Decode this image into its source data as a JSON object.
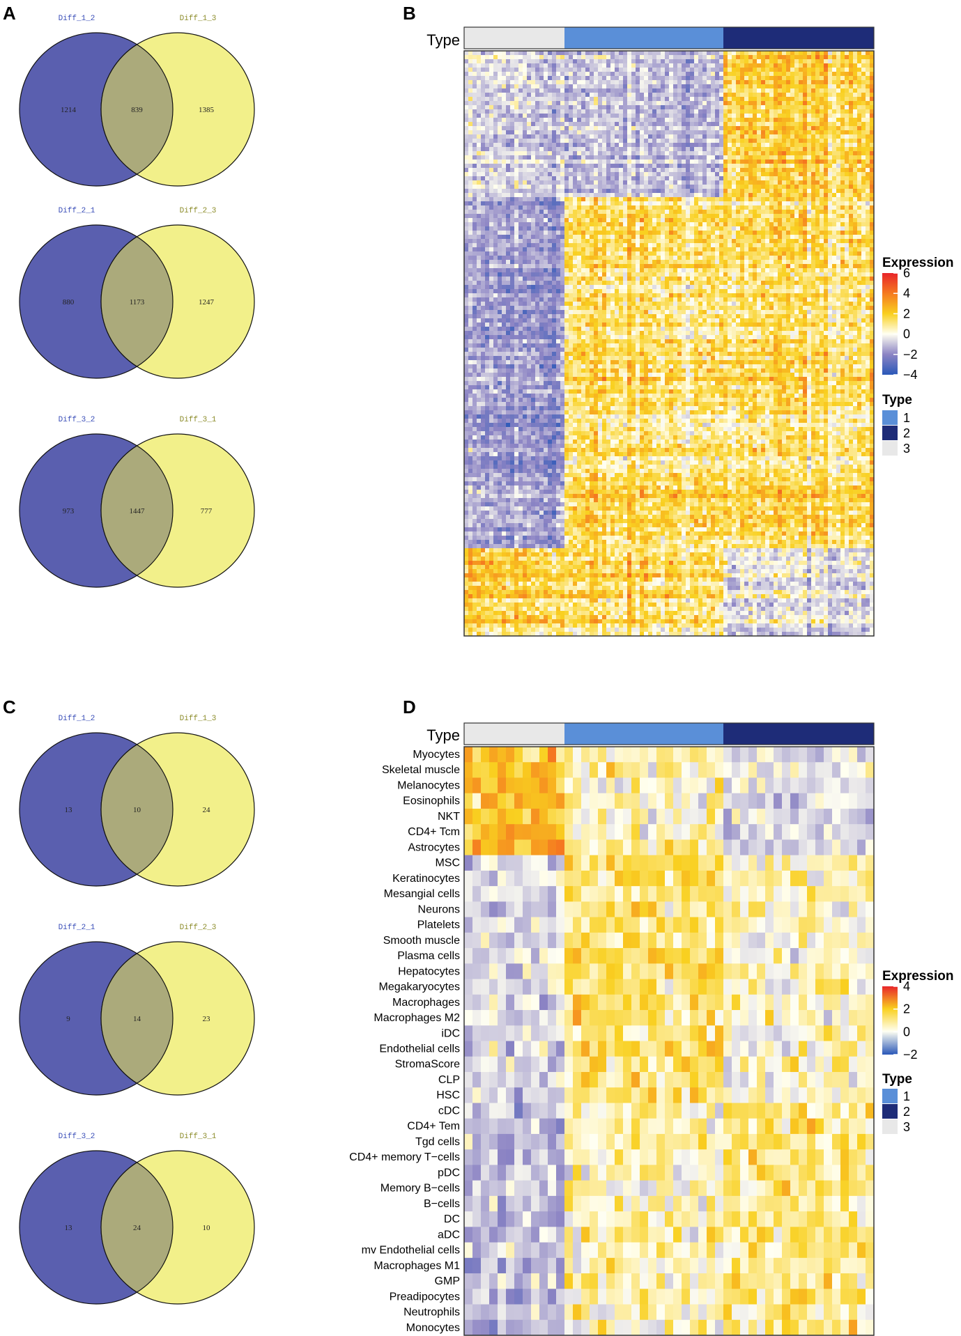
{
  "panels": {
    "A": "A",
    "B": "B",
    "C": "C",
    "D": "D"
  },
  "colors": {
    "venn_left": "#5A5FAF",
    "venn_right": "#F2F08A",
    "venn_overlap": "#ABAA7B",
    "label_left": "#3A4EB8",
    "label_right": "#8C8C2A",
    "type1": "#5A8FD8",
    "type2": "#1E2C78",
    "type3": "#E8E8E8"
  },
  "chart_data": [
    {
      "type": "venn",
      "panel": "A",
      "diagrams": [
        {
          "left_label": "Diff_1_2",
          "right_label": "Diff_1_3",
          "left_only": 1214,
          "overlap": 839,
          "right_only": 1385
        },
        {
          "left_label": "Diff_2_1",
          "right_label": "Diff_2_3",
          "left_only": 880,
          "overlap": 1173,
          "right_only": 1247
        },
        {
          "left_label": "Diff_3_2",
          "right_label": "Diff_3_1",
          "left_only": 973,
          "overlap": 1447,
          "right_only": 777
        }
      ]
    },
    {
      "type": "heatmap",
      "panel": "B",
      "annotation_label": "Type",
      "type_groups": [
        {
          "type": "3",
          "columns": 24
        },
        {
          "type": "1",
          "columns": 38
        },
        {
          "type": "2",
          "columns": 36
        }
      ],
      "legend": {
        "title": "Expression",
        "ticks": [
          "6",
          "4",
          "2",
          "0",
          "−2",
          "−4"
        ],
        "range": [
          -4,
          6
        ]
      },
      "type_legend": {
        "title": "Type",
        "items": [
          "1",
          "2",
          "3"
        ]
      }
    },
    {
      "type": "venn",
      "panel": "C",
      "diagrams": [
        {
          "left_label": "Diff_1_2",
          "right_label": "Diff_1_3",
          "left_only": 13,
          "overlap": 10,
          "right_only": 24
        },
        {
          "left_label": "Diff_2_1",
          "right_label": "Diff_2_3",
          "left_only": 9,
          "overlap": 14,
          "right_only": 23
        },
        {
          "left_label": "Diff_3_2",
          "right_label": "Diff_3_1",
          "left_only": 13,
          "overlap": 24,
          "right_only": 10
        }
      ]
    },
    {
      "type": "heatmap",
      "panel": "D",
      "annotation_label": "Type",
      "type_groups": [
        {
          "type": "3",
          "columns": 12
        },
        {
          "type": "1",
          "columns": 19
        },
        {
          "type": "2",
          "columns": 18
        }
      ],
      "rows": [
        "Myocytes",
        "Skeletal muscle",
        "Melanocytes",
        "Eosinophils",
        "NKT",
        "CD4+ Tcm",
        "Astrocytes",
        "MSC",
        "Keratinocytes",
        "Mesangial cells",
        "Neurons",
        "Platelets",
        "Smooth muscle",
        "Plasma cells",
        "Hepatocytes",
        "Megakaryocytes",
        "Macrophages",
        "Macrophages M2",
        "iDC",
        "Endothelial cells",
        "StromaScore",
        "CLP",
        "HSC",
        "cDC",
        "CD4+ Tem",
        "Tgd cells",
        "CD4+ memory T−cells",
        "pDC",
        "Memory B−cells",
        "B−cells",
        "DC",
        "aDC",
        "mv Endothelial cells",
        "Macrophages M1",
        "GMP",
        "Preadipocytes",
        "Neutrophils",
        "Monocytes"
      ],
      "legend": {
        "title": "Expression",
        "ticks": [
          "4",
          "2",
          "0",
          "−2"
        ],
        "range": [
          -2,
          4
        ]
      },
      "type_legend": {
        "title": "Type",
        "items": [
          "1",
          "2",
          "3"
        ]
      }
    }
  ]
}
